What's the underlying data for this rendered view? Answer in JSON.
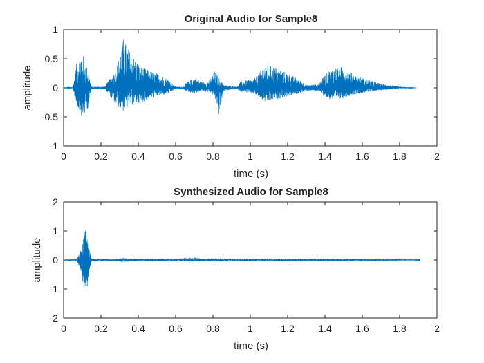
{
  "chart_data": [
    {
      "type": "line",
      "title": "Original Audio for Sample8",
      "xlabel": "time (s)",
      "ylabel": "amplitude",
      "xlim": [
        0,
        2
      ],
      "ylim": [
        -1,
        1
      ],
      "xticks": [
        "0",
        "0.2",
        "0.4",
        "0.6",
        "0.8",
        "1",
        "1.2",
        "1.4",
        "1.6",
        "1.8",
        "2"
      ],
      "yticks": [
        "1",
        "0.5",
        "0",
        "-0.5",
        "-1"
      ],
      "series": [
        {
          "color": "#0072BD",
          "duration": 1.89,
          "envelope": [
            {
              "x": 0.0,
              "upper": 0.01,
              "lower": -0.01
            },
            {
              "x": 0.05,
              "upper": 0.02,
              "lower": -0.02
            },
            {
              "x": 0.07,
              "upper": 0.45,
              "lower": -0.3
            },
            {
              "x": 0.1,
              "upper": 0.62,
              "lower": -0.55
            },
            {
              "x": 0.13,
              "upper": 0.3,
              "lower": -0.35
            },
            {
              "x": 0.15,
              "upper": 0.02,
              "lower": -0.02
            },
            {
              "x": 0.22,
              "upper": 0.02,
              "lower": -0.02
            },
            {
              "x": 0.24,
              "upper": 0.12,
              "lower": -0.1
            },
            {
              "x": 0.28,
              "upper": 0.3,
              "lower": -0.3
            },
            {
              "x": 0.32,
              "upper": 0.85,
              "lower": -0.4
            },
            {
              "x": 0.36,
              "upper": 0.6,
              "lower": -0.3
            },
            {
              "x": 0.42,
              "upper": 0.35,
              "lower": -0.25
            },
            {
              "x": 0.5,
              "upper": 0.25,
              "lower": -0.15
            },
            {
              "x": 0.56,
              "upper": 0.15,
              "lower": -0.1
            },
            {
              "x": 0.6,
              "upper": 0.02,
              "lower": -0.02
            },
            {
              "x": 0.64,
              "upper": 0.02,
              "lower": -0.02
            },
            {
              "x": 0.66,
              "upper": 0.1,
              "lower": -0.06
            },
            {
              "x": 0.7,
              "upper": 0.18,
              "lower": -0.1
            },
            {
              "x": 0.74,
              "upper": 0.1,
              "lower": -0.05
            },
            {
              "x": 0.78,
              "upper": 0.12,
              "lower": -0.08
            },
            {
              "x": 0.81,
              "upper": 0.3,
              "lower": -0.15
            },
            {
              "x": 0.83,
              "upper": 0.18,
              "lower": -0.5
            },
            {
              "x": 0.86,
              "upper": 0.05,
              "lower": -0.05
            },
            {
              "x": 0.93,
              "upper": 0.02,
              "lower": -0.02
            },
            {
              "x": 0.95,
              "upper": 0.12,
              "lower": -0.07
            },
            {
              "x": 1.02,
              "upper": 0.15,
              "lower": -0.1
            },
            {
              "x": 1.08,
              "upper": 0.4,
              "lower": -0.25
            },
            {
              "x": 1.14,
              "upper": 0.35,
              "lower": -0.2
            },
            {
              "x": 1.2,
              "upper": 0.25,
              "lower": -0.15
            },
            {
              "x": 1.26,
              "upper": 0.15,
              "lower": -0.1
            },
            {
              "x": 1.3,
              "upper": 0.05,
              "lower": -0.05
            },
            {
              "x": 1.36,
              "upper": 0.06,
              "lower": -0.05
            },
            {
              "x": 1.42,
              "upper": 0.3,
              "lower": -0.2
            },
            {
              "x": 1.48,
              "upper": 0.38,
              "lower": -0.2
            },
            {
              "x": 1.55,
              "upper": 0.25,
              "lower": -0.12
            },
            {
              "x": 1.62,
              "upper": 0.15,
              "lower": -0.08
            },
            {
              "x": 1.7,
              "upper": 0.07,
              "lower": -0.04
            },
            {
              "x": 1.8,
              "upper": 0.02,
              "lower": -0.01
            },
            {
              "x": 1.89,
              "upper": 0.0,
              "lower": 0.0
            }
          ]
        }
      ]
    },
    {
      "type": "line",
      "title": "Synthesized Audio for Sample8",
      "xlabel": "time (s)",
      "ylabel": "amplitude",
      "xlim": [
        0,
        2
      ],
      "ylim": [
        -2,
        2
      ],
      "xticks": [
        "0",
        "0.2",
        "0.4",
        "0.6",
        "0.8",
        "1",
        "1.2",
        "1.4",
        "1.6",
        "1.8",
        "2"
      ],
      "yticks": [
        "2",
        "1",
        "0",
        "-1",
        "-2"
      ],
      "series": [
        {
          "color": "#0072BD",
          "duration": 1.91,
          "envelope": [
            {
              "x": 0.0,
              "upper": 0.02,
              "lower": -0.02
            },
            {
              "x": 0.07,
              "upper": 0.03,
              "lower": -0.03
            },
            {
              "x": 0.09,
              "upper": 0.3,
              "lower": -0.3
            },
            {
              "x": 0.11,
              "upper": 0.9,
              "lower": -1.0
            },
            {
              "x": 0.12,
              "upper": 1.08,
              "lower": -1.38
            },
            {
              "x": 0.13,
              "upper": 0.6,
              "lower": -0.7
            },
            {
              "x": 0.15,
              "upper": 0.04,
              "lower": -0.04
            },
            {
              "x": 0.28,
              "upper": 0.03,
              "lower": -0.03
            },
            {
              "x": 0.32,
              "upper": 0.07,
              "lower": -0.08
            },
            {
              "x": 0.36,
              "upper": 0.05,
              "lower": -0.05
            },
            {
              "x": 0.4,
              "upper": 0.05,
              "lower": -0.04
            },
            {
              "x": 0.5,
              "upper": 0.05,
              "lower": -0.04
            },
            {
              "x": 0.6,
              "upper": 0.04,
              "lower": -0.03
            },
            {
              "x": 0.7,
              "upper": 0.09,
              "lower": -0.06
            },
            {
              "x": 0.75,
              "upper": 0.05,
              "lower": -0.04
            },
            {
              "x": 0.8,
              "upper": 0.06,
              "lower": -0.05
            },
            {
              "x": 0.9,
              "upper": 0.05,
              "lower": -0.04
            },
            {
              "x": 1.0,
              "upper": 0.05,
              "lower": -0.04
            },
            {
              "x": 1.1,
              "upper": 0.04,
              "lower": -0.03
            },
            {
              "x": 1.2,
              "upper": 0.05,
              "lower": -0.05
            },
            {
              "x": 1.3,
              "upper": 0.04,
              "lower": -0.04
            },
            {
              "x": 1.4,
              "upper": 0.05,
              "lower": -0.04
            },
            {
              "x": 1.5,
              "upper": 0.05,
              "lower": -0.04
            },
            {
              "x": 1.6,
              "upper": 0.04,
              "lower": -0.03
            },
            {
              "x": 1.7,
              "upper": 0.03,
              "lower": -0.03
            },
            {
              "x": 1.8,
              "upper": 0.03,
              "lower": -0.02
            },
            {
              "x": 1.91,
              "upper": 0.01,
              "lower": -0.01
            }
          ]
        }
      ]
    }
  ]
}
